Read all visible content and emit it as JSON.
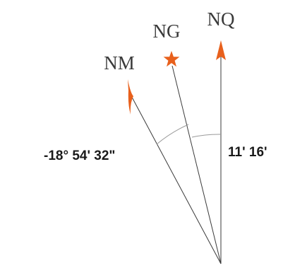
{
  "labels": {
    "grid_north": "NQ",
    "geographic_north": "NG",
    "magnetic_north": "NM"
  },
  "angles": {
    "magnetic_declination": "-18° 54' 32\"",
    "grid_convergence": "11' 16'"
  },
  "colors": {
    "accent": "#e8601c",
    "line": "#3a3a3a"
  }
}
